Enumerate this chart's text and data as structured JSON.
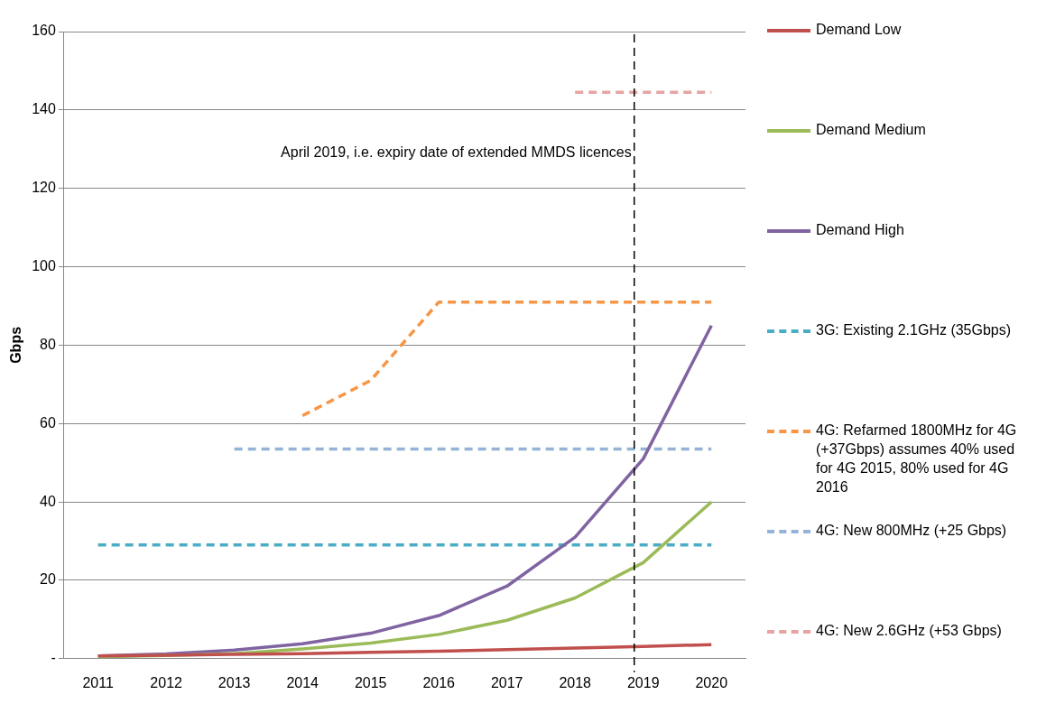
{
  "chart_data": {
    "type": "line",
    "ylabel": "Gbps",
    "categories": [
      "2011",
      "2012",
      "2013",
      "2014",
      "2015",
      "2016",
      "2017",
      "2018",
      "2019",
      "2020"
    ],
    "ylim": [
      0,
      160
    ],
    "yticks": [
      {
        "value": 0,
        "label": "-"
      },
      20,
      40,
      60,
      80,
      100,
      120,
      140,
      160
    ],
    "grid": "y",
    "legend": "right",
    "marker": "none",
    "series": [
      {
        "name": "Demand Low",
        "color": "#c0504d",
        "line_style": "solid",
        "values": [
          0.7,
          0.9,
          1.1,
          1.3,
          1.6,
          1.9,
          2.3,
          2.7,
          3.1,
          3.6
        ]
      },
      {
        "name": "Demand Medium",
        "color": "#9bbb59",
        "line_style": "solid",
        "values": [
          0.5,
          0.8,
          1.3,
          2.5,
          4,
          6.2,
          9.8,
          15.5,
          24.5,
          40
        ]
      },
      {
        "name": "Demand High",
        "color": "#8064a2",
        "line_style": "solid",
        "values": [
          0.7,
          1.2,
          2.2,
          3.8,
          6.5,
          11,
          18.5,
          31,
          51,
          85
        ]
      },
      {
        "name": "3G: Existing 2.1GHz (35Gbps)",
        "color": "#4bacc6",
        "line_style": "dashed",
        "values": [
          29,
          29,
          29,
          29,
          29,
          29,
          29,
          29,
          29,
          29
        ]
      },
      {
        "name": "4G: Refarmed 1800MHz for 4G (+37Gbps) assumes 40% used for 4G 2015, 80% used for 4G 2016",
        "color": "#f79646",
        "line_style": "dashed",
        "values": [
          null,
          null,
          null,
          62,
          71,
          91,
          91,
          91,
          91,
          91
        ]
      },
      {
        "name": "4G: New 800MHz (+25 Gbps)",
        "color": "#95b3d7",
        "line_style": "dashed",
        "values": [
          null,
          null,
          53.5,
          53.5,
          53.5,
          53.5,
          53.5,
          53.5,
          53.5,
          53.5
        ]
      },
      {
        "name": "4G: New 2.6GHz (+53 Gbps)",
        "color": "#e6a3a3",
        "line_style": "dashed",
        "values": [
          null,
          null,
          null,
          null,
          null,
          null,
          null,
          144.5,
          144.5,
          144.5
        ]
      }
    ],
    "ref_lines": [
      {
        "axis": "x",
        "value": "2019",
        "label": "April 2019, i.e. expiry date of extended MMDS licences",
        "color": "#000000",
        "line_style": "dashed"
      }
    ]
  }
}
